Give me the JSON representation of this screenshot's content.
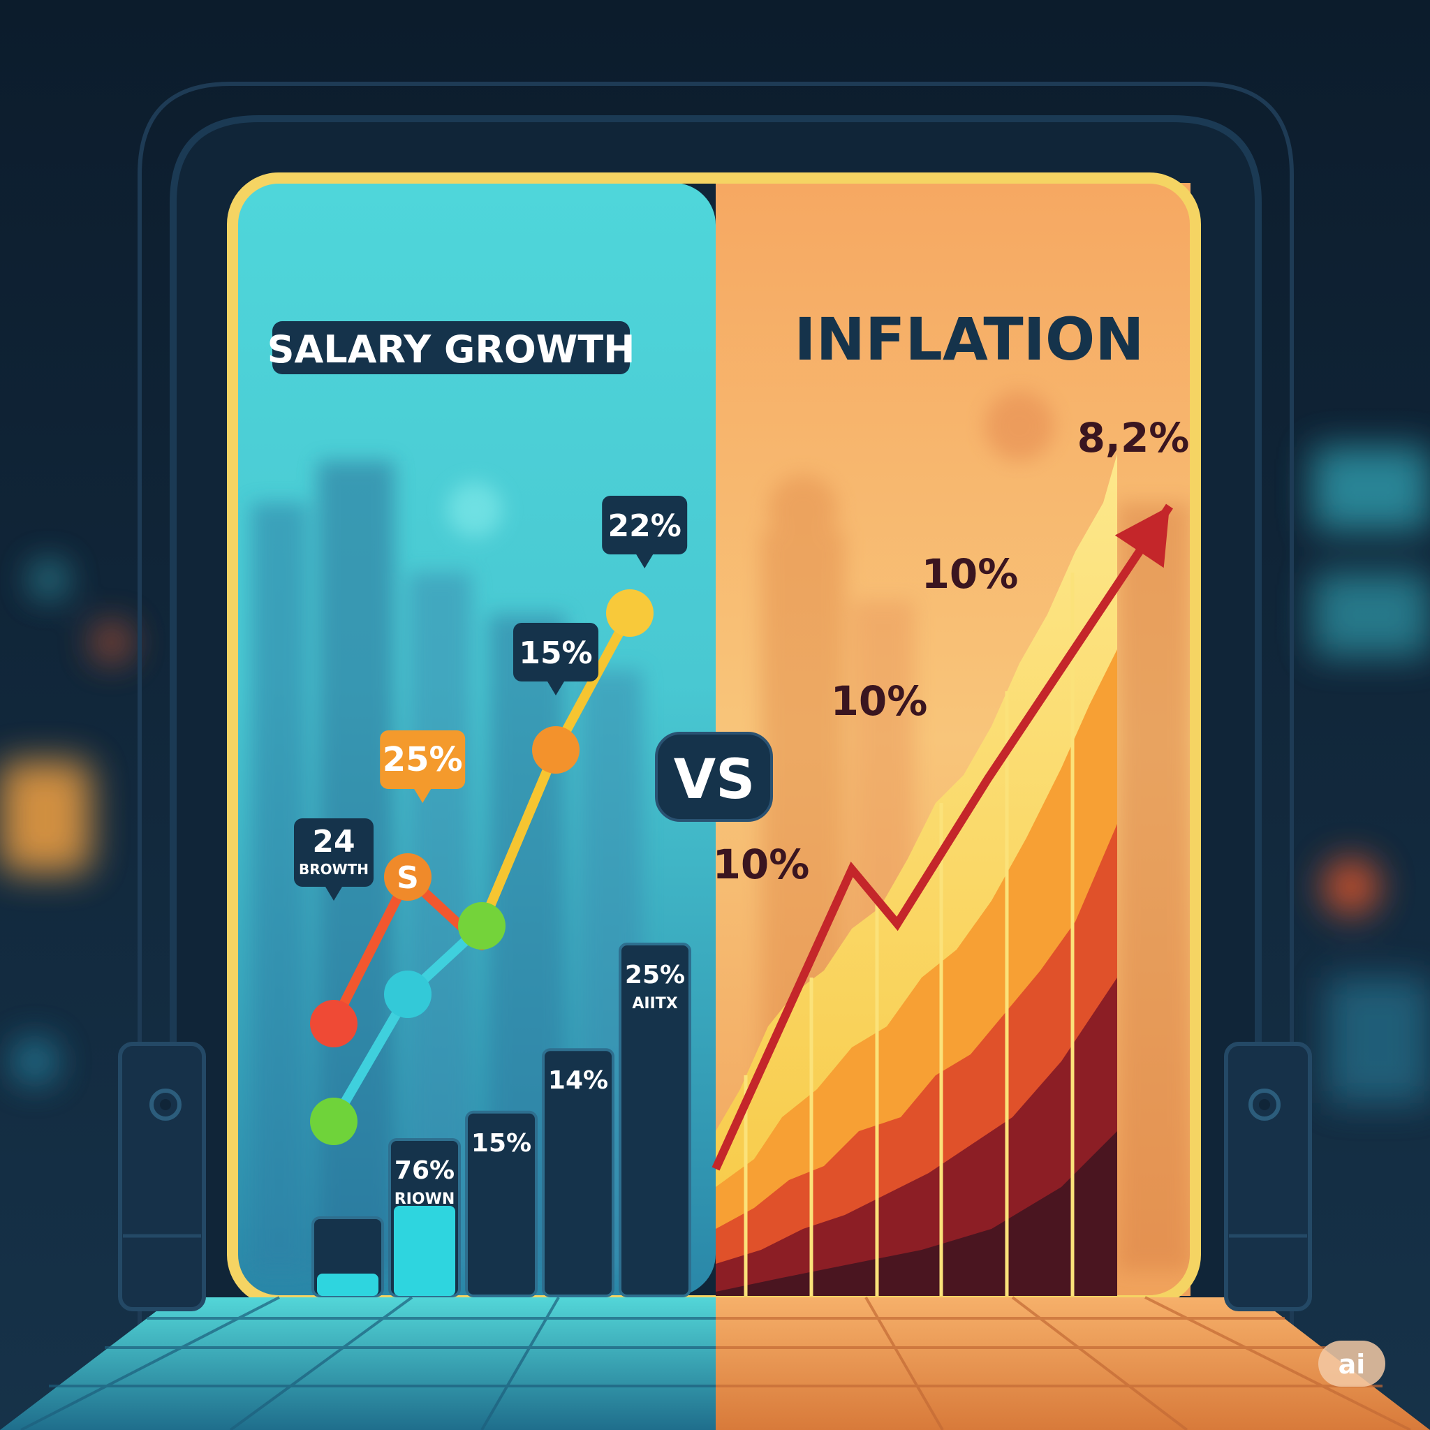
{
  "left_title": "SALARY GROWTH",
  "right_title": "INFLATION",
  "vs_label": "VS",
  "watermark": "ai",
  "coin_symbol": "S",
  "colors": {
    "teal": "#44d3d6",
    "orange_panel": "#f6a862",
    "navy": "#15334b",
    "frame_yellow": "#f5d463",
    "arrow_red": "#c4262a"
  },
  "chart_data": [
    {
      "type": "bar",
      "title": "SALARY GROWTH",
      "bars": [
        {
          "value": 1.0,
          "label_top": "",
          "label_bottom": ""
        },
        {
          "value": 2.0,
          "label_top": "76%",
          "label_bottom": "RIOWN"
        },
        {
          "value": 2.35,
          "label_top": "15%",
          "label_bottom": ""
        },
        {
          "value": 3.15,
          "label_top": "14%",
          "label_bottom": ""
        },
        {
          "value": 4.5,
          "label_top": "25%",
          "label_bottom": "AIITX"
        }
      ],
      "series": [
        {
          "color": "#f2572e",
          "points": [
            [
              0,
              3.1
            ],
            [
              1,
              4.6
            ],
            [
              2,
              3.9
            ]
          ]
        },
        {
          "color": "#3fd0dd",
          "points": [
            [
              0,
              2.1
            ],
            [
              1,
              3.4
            ],
            [
              2,
              4.1
            ]
          ]
        },
        {
          "color": "#f6c531",
          "points": [
            [
              2,
              4.1
            ],
            [
              3,
              5.9
            ],
            [
              4,
              7.3
            ]
          ]
        }
      ],
      "markers": [
        {
          "x": 0,
          "y": 3.1,
          "color": "#ef4a35"
        },
        {
          "x": 1,
          "y": 4.6,
          "color": "#f08a2a"
        },
        {
          "x": 0,
          "y": 2.1,
          "color": "#6fd33a"
        },
        {
          "x": 1,
          "y": 3.4,
          "color": "#33c9d8"
        },
        {
          "x": 2,
          "y": 4.1,
          "color": "#74d33a"
        },
        {
          "x": 3,
          "y": 5.9,
          "color": "#f3922c"
        },
        {
          "x": 4,
          "y": 7.3,
          "color": "#f8c93a"
        }
      ],
      "callouts": [
        {
          "x": 0,
          "y": 4.5,
          "text": "24",
          "subtext": "BROWTH",
          "style": "dark"
        },
        {
          "x": 1.2,
          "y": 5.5,
          "text": "25%",
          "subtext": "",
          "style": "orange"
        },
        {
          "x": 3,
          "y": 6.6,
          "text": "15%",
          "subtext": "",
          "style": "dark"
        },
        {
          "x": 4.2,
          "y": 7.9,
          "text": "22%",
          "subtext": "",
          "style": "dark"
        }
      ]
    },
    {
      "type": "line",
      "title": "INFLATION",
      "series": [
        {
          "color": "#c4262a",
          "points": [
            [
              0,
              1.2
            ],
            [
              1.5,
              4.5
            ],
            [
              2,
              3.9
            ],
            [
              3,
              5.5
            ],
            [
              5,
              8.5
            ]
          ]
        }
      ],
      "labels": [
        {
          "x": 0.5,
          "y": 4.4,
          "text": "10%"
        },
        {
          "x": 1.8,
          "y": 6.2,
          "text": "10%"
        },
        {
          "x": 2.8,
          "y": 7.6,
          "text": "10%"
        },
        {
          "x": 4.6,
          "y": 9.1,
          "text": "8,2%"
        }
      ]
    }
  ]
}
